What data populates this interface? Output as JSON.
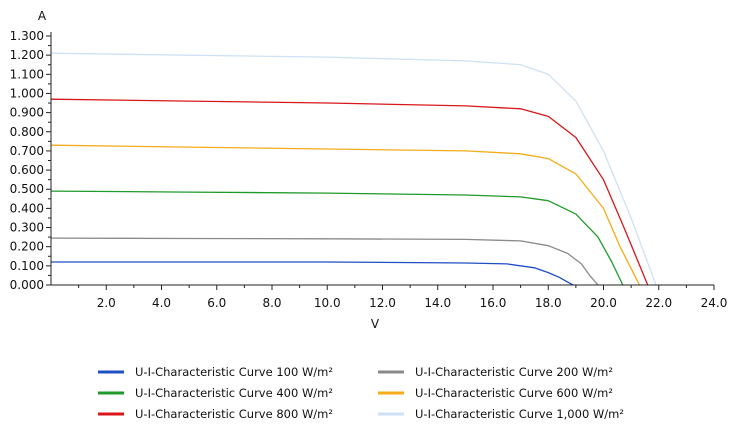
{
  "chart_data": {
    "type": "line",
    "title": "",
    "xlabel": "V",
    "ylabel": "A",
    "xlim": [
      0,
      24
    ],
    "ylim": [
      0,
      1.3
    ],
    "x_ticks": [
      "2.0",
      "4.0",
      "6.0",
      "8.0",
      "10.0",
      "12.0",
      "14.0",
      "16.0",
      "18.0",
      "20.0",
      "22.0",
      "24.0"
    ],
    "y_ticks": [
      "0.000",
      "0.100",
      "0.200",
      "0.300",
      "0.400",
      "0.500",
      "0.600",
      "0.700",
      "0.800",
      "0.900",
      "1.000",
      "1.100",
      "1.200",
      "1.300"
    ],
    "grid": false,
    "legend_position": "bottom",
    "series": [
      {
        "name": "U-I-Characteristic Curve 100 W/m²",
        "color": "#1f4fc4",
        "x": [
          0,
          5,
          10,
          15,
          16.5,
          17.5,
          18,
          18.4,
          18.7,
          18.9
        ],
        "y": [
          0.12,
          0.12,
          0.12,
          0.115,
          0.11,
          0.09,
          0.065,
          0.04,
          0.015,
          0
        ]
      },
      {
        "name": "U-I-Characteristic Curve 200 W/m²",
        "color": "#8a8a8a",
        "x": [
          0,
          5,
          10,
          15,
          17,
          18,
          18.7,
          19.2,
          19.5,
          19.8
        ],
        "y": [
          0.245,
          0.243,
          0.241,
          0.238,
          0.23,
          0.205,
          0.165,
          0.11,
          0.05,
          0
        ]
      },
      {
        "name": "U-I-Characteristic Curve 400 W/m²",
        "color": "#1e9a2a",
        "x": [
          0,
          5,
          10,
          15,
          17,
          18,
          19,
          19.8,
          20.3,
          20.7
        ],
        "y": [
          0.49,
          0.485,
          0.48,
          0.47,
          0.46,
          0.44,
          0.37,
          0.25,
          0.12,
          0
        ]
      },
      {
        "name": "U-I-Characteristic Curve 600 W/m²",
        "color": "#f5ab1a",
        "x": [
          0,
          5,
          10,
          15,
          17,
          18,
          19,
          20,
          20.6,
          21.3
        ],
        "y": [
          0.73,
          0.72,
          0.71,
          0.7,
          0.685,
          0.66,
          0.58,
          0.4,
          0.2,
          0
        ]
      },
      {
        "name": "U-I-Characteristic Curve 800 W/m²",
        "color": "#d8171b",
        "x": [
          0,
          5,
          10,
          15,
          17,
          18,
          19,
          20,
          20.8,
          21.6
        ],
        "y": [
          0.97,
          0.96,
          0.95,
          0.935,
          0.92,
          0.88,
          0.77,
          0.55,
          0.28,
          0
        ]
      },
      {
        "name": "U-I-Characteristic Curve 1,000 W/m²",
        "color": "#cfe1f4",
        "x": [
          0,
          5,
          10,
          15,
          17,
          18,
          19,
          20,
          21,
          21.9
        ],
        "y": [
          1.21,
          1.2,
          1.19,
          1.17,
          1.15,
          1.1,
          0.96,
          0.7,
          0.35,
          0
        ]
      }
    ]
  }
}
